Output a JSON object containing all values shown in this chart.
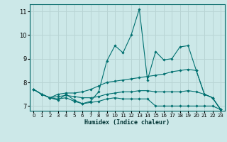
{
  "title": "",
  "xlabel": "Humidex (Indice chaleur)",
  "ylabel": "",
  "background_color": "#cce8e8",
  "grid_color": "#b8d4d4",
  "line_color": "#007070",
  "xlim": [
    -0.5,
    23.5
  ],
  "ylim": [
    6.8,
    11.3
  ],
  "yticks": [
    7,
    8,
    9,
    10,
    11
  ],
  "xticks": [
    0,
    1,
    2,
    3,
    4,
    5,
    6,
    7,
    8,
    9,
    10,
    11,
    12,
    13,
    14,
    15,
    16,
    17,
    18,
    19,
    20,
    21,
    22,
    23
  ],
  "series": [
    [
      7.7,
      7.5,
      7.35,
      7.25,
      7.5,
      7.25,
      7.1,
      7.2,
      7.6,
      8.9,
      9.55,
      9.25,
      10.0,
      11.1,
      8.1,
      9.3,
      8.95,
      9.0,
      9.5,
      9.55,
      8.5,
      7.5,
      7.35,
      6.85
    ],
    [
      7.7,
      7.5,
      7.35,
      7.5,
      7.55,
      7.55,
      7.6,
      7.7,
      7.85,
      8.0,
      8.05,
      8.1,
      8.15,
      8.2,
      8.25,
      8.3,
      8.35,
      8.45,
      8.5,
      8.55,
      8.5,
      7.5,
      7.35,
      6.85
    ],
    [
      7.7,
      7.5,
      7.35,
      7.4,
      7.45,
      7.4,
      7.35,
      7.35,
      7.4,
      7.5,
      7.55,
      7.6,
      7.6,
      7.65,
      7.65,
      7.6,
      7.6,
      7.6,
      7.6,
      7.65,
      7.6,
      7.5,
      7.35,
      6.85
    ],
    [
      7.7,
      7.5,
      7.35,
      7.3,
      7.35,
      7.2,
      7.1,
      7.15,
      7.2,
      7.3,
      7.35,
      7.3,
      7.3,
      7.3,
      7.3,
      7.0,
      7.0,
      7.0,
      7.0,
      7.0,
      7.0,
      7.0,
      7.0,
      6.85
    ]
  ]
}
